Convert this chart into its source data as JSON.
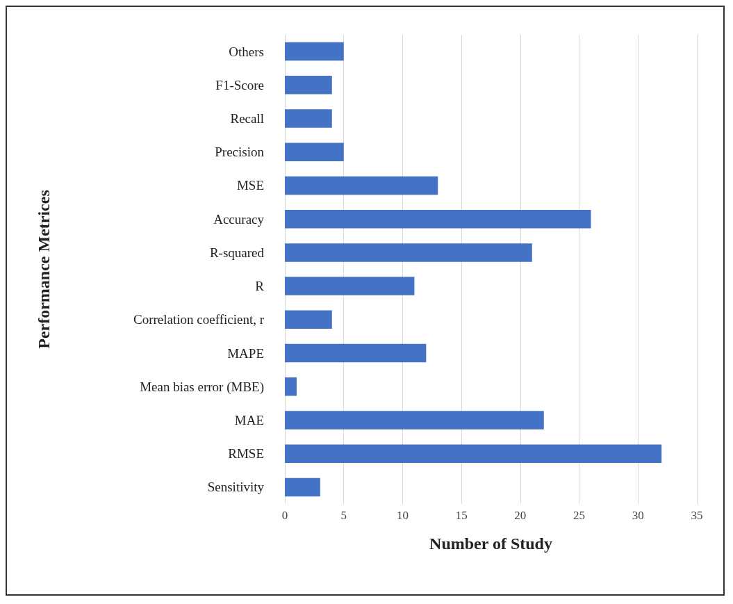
{
  "chart_data": {
    "type": "bar",
    "orientation": "horizontal",
    "xlabel": "Number of Study",
    "ylabel": "Performance Metrices",
    "categories": [
      "Others",
      "F1-Score",
      "Recall",
      "Precision",
      "MSE",
      "Accuracy",
      "R-squared",
      "R",
      "Correlation coefficient, r",
      "MAPE",
      "Mean bias error (MBE)",
      "MAE",
      "RMSE",
      "Sensitivity"
    ],
    "values": [
      5,
      4,
      4,
      5,
      13,
      26,
      21,
      11,
      4,
      12,
      1,
      22,
      32,
      3
    ],
    "color": "#4472c4",
    "xlim": [
      0,
      35
    ],
    "xticks": [
      0,
      5,
      10,
      15,
      20,
      25,
      30,
      35
    ],
    "grid": "x"
  }
}
